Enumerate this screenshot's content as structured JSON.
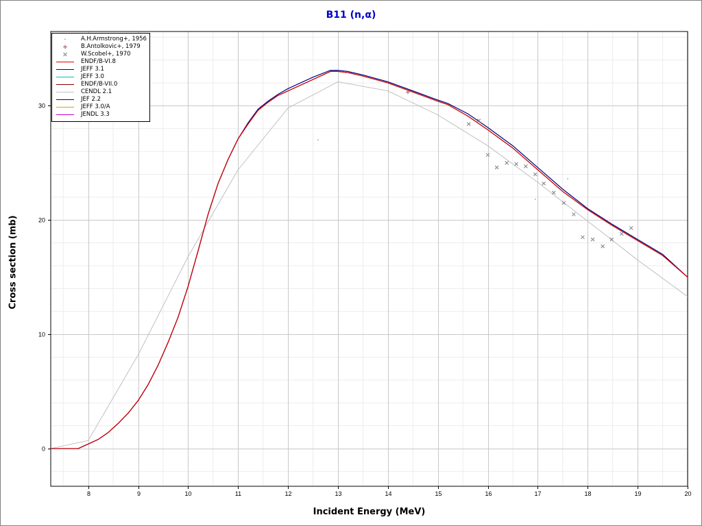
{
  "chart_data": {
    "type": "line",
    "title": "B11 (n,α)",
    "xlabel": "Incident Energy (MeV)",
    "ylabel": "Cross section (mb)",
    "xlim": [
      7.25,
      20
    ],
    "ylim": [
      -3.3,
      36.5
    ],
    "x_ticks": [
      8,
      9,
      10,
      11,
      12,
      13,
      14,
      15,
      16,
      17,
      18,
      19,
      20
    ],
    "y_ticks": [
      0,
      10,
      20,
      30
    ],
    "grid": true,
    "legend_position": "top-left",
    "series": [
      {
        "name": "A.H.Armstrong+, 1956",
        "kind": "points",
        "marker": "dot",
        "color": "#b0b0b0",
        "x": [
          12.6,
          16.95,
          17.6
        ],
        "y": [
          27.0,
          21.8,
          23.6
        ]
      },
      {
        "name": "B.Antolkovic+, 1979",
        "kind": "points",
        "marker": "plus",
        "color": "#a05050",
        "x": [
          14.4
        ],
        "y": [
          31.2
        ]
      },
      {
        "name": "W.Scobel+, 1970",
        "kind": "points",
        "marker": "x",
        "color": "#808080",
        "x": [
          15.62,
          15.82,
          16.0,
          16.18,
          16.38,
          16.57,
          16.76,
          16.95,
          17.12,
          17.32,
          17.52,
          17.72,
          17.9,
          18.1,
          18.3,
          18.48,
          18.68,
          18.87
        ],
        "y": [
          28.4,
          28.7,
          25.7,
          24.6,
          25.0,
          24.9,
          24.7,
          24.0,
          23.2,
          22.4,
          21.5,
          20.5,
          18.5,
          18.3,
          17.7,
          18.3,
          18.8,
          19.3
        ]
      },
      {
        "name": "ENDF/B-VI.8",
        "kind": "line",
        "color": "#dd0000",
        "x": [
          7.25,
          7.8,
          8.0,
          8.2,
          8.4,
          8.6,
          8.8,
          9.0,
          9.2,
          9.4,
          9.6,
          9.8,
          10.0,
          10.2,
          10.4,
          10.6,
          10.8,
          11.0,
          11.2,
          11.4,
          11.6,
          11.8,
          12.0,
          12.5,
          12.85,
          13.0,
          13.2,
          13.5,
          14.0,
          14.5,
          15.0,
          15.2,
          15.6,
          16.0,
          16.5,
          17.0,
          17.5,
          18.0,
          18.5,
          19.0,
          19.5,
          20.0
        ],
        "y": [
          0,
          0,
          0.4,
          0.8,
          1.4,
          2.2,
          3.1,
          4.2,
          5.6,
          7.3,
          9.3,
          11.5,
          14.2,
          17.3,
          20.5,
          23.2,
          25.3,
          27.1,
          28.4,
          29.6,
          30.3,
          30.9,
          31.3,
          32.3,
          33.0,
          33.0,
          32.9,
          32.6,
          32.0,
          31.2,
          30.4,
          30.1,
          29.1,
          27.9,
          26.3,
          24.4,
          22.5,
          20.9,
          19.5,
          18.2,
          16.9,
          15.0
        ]
      },
      {
        "name": "JEFF 3.1",
        "kind": "line",
        "color": "#000080",
        "x": [
          7.25,
          7.8,
          8.0,
          8.2,
          8.4,
          8.6,
          8.8,
          9.0,
          9.2,
          9.4,
          9.6,
          9.8,
          10.0,
          10.2,
          10.4,
          10.6,
          10.8,
          11.0,
          11.2,
          11.4,
          11.6,
          11.8,
          12.0,
          12.5,
          12.85,
          13.0,
          13.2,
          13.5,
          14.0,
          14.5,
          15.0,
          15.2,
          15.6,
          16.0,
          16.5,
          17.0,
          17.5,
          18.0,
          18.5,
          19.0,
          19.5,
          20.0
        ],
        "y": [
          0,
          0,
          0.4,
          0.8,
          1.4,
          2.2,
          3.1,
          4.2,
          5.6,
          7.3,
          9.3,
          11.5,
          14.2,
          17.3,
          20.5,
          23.2,
          25.3,
          27.1,
          28.5,
          29.7,
          30.4,
          31.0,
          31.5,
          32.5,
          33.1,
          33.1,
          33.0,
          32.7,
          32.1,
          31.3,
          30.5,
          30.2,
          29.3,
          28.1,
          26.5,
          24.6,
          22.7,
          21.0,
          19.6,
          18.3,
          17.0,
          15.0
        ]
      },
      {
        "name": "JEFF 3.0",
        "kind": "line",
        "color": "#00c0c0",
        "x": [
          7.25,
          7.8,
          8.0,
          8.2,
          8.4,
          8.6,
          8.8,
          9.0,
          9.2,
          9.4,
          9.6,
          9.8,
          10.0,
          10.2,
          10.4,
          10.6,
          10.8,
          11.0,
          11.2,
          11.4,
          11.6,
          11.8,
          12.0,
          12.5,
          12.85,
          13.0,
          13.2,
          13.5,
          14.0,
          14.5,
          15.0,
          15.2,
          15.6,
          16.0,
          16.5,
          17.0,
          17.5,
          18.0,
          18.5,
          19.0,
          19.5,
          20.0
        ],
        "y": [
          0,
          0,
          0.4,
          0.8,
          1.4,
          2.2,
          3.1,
          4.2,
          5.6,
          7.3,
          9.3,
          11.5,
          14.2,
          17.3,
          20.5,
          23.2,
          25.3,
          27.1,
          28.4,
          29.6,
          30.3,
          30.9,
          31.3,
          32.3,
          33.0,
          33.0,
          32.9,
          32.6,
          32.0,
          31.2,
          30.4,
          30.1,
          29.1,
          27.9,
          26.3,
          24.4,
          22.5,
          20.9,
          19.5,
          18.2,
          16.9,
          15.0
        ]
      },
      {
        "name": "ENDF/B-VII.0",
        "kind": "line",
        "color": "#800000",
        "x": [
          7.25,
          7.8,
          8.0,
          8.2,
          8.4,
          8.6,
          8.8,
          9.0,
          9.2,
          9.4,
          9.6,
          9.8,
          10.0,
          10.2,
          10.4,
          10.6,
          10.8,
          11.0,
          11.2,
          11.4,
          11.6,
          11.8,
          12.0,
          12.5,
          12.85,
          13.0,
          13.2,
          13.5,
          14.0,
          14.5,
          15.0,
          15.2,
          15.6,
          16.0,
          16.5,
          17.0,
          17.5,
          18.0,
          18.5,
          19.0,
          19.5,
          20.0
        ],
        "y": [
          0,
          0,
          0.4,
          0.8,
          1.4,
          2.2,
          3.1,
          4.2,
          5.6,
          7.3,
          9.3,
          11.5,
          14.2,
          17.3,
          20.5,
          23.2,
          25.3,
          27.1,
          28.4,
          29.6,
          30.3,
          30.9,
          31.3,
          32.3,
          33.0,
          33.0,
          32.9,
          32.6,
          32.0,
          31.2,
          30.4,
          30.1,
          29.1,
          27.9,
          26.3,
          24.4,
          22.5,
          20.9,
          19.5,
          18.2,
          16.9,
          15.0
        ]
      },
      {
        "name": "CENDL 2.1",
        "kind": "line",
        "color": "#c0c0c0",
        "x": [
          7.25,
          8.0,
          9.0,
          10.0,
          11.0,
          12.0,
          13.0,
          14.0,
          15.0,
          16.0,
          17.0,
          18.0,
          19.0,
          20.0
        ],
        "y": [
          0,
          0.7,
          8.2,
          16.8,
          24.4,
          29.8,
          32.1,
          31.3,
          29.2,
          26.5,
          23.3,
          19.9,
          16.5,
          13.3
        ]
      },
      {
        "name": "JEF 2.2",
        "kind": "line",
        "color": "#400000",
        "x": [
          7.25,
          7.8,
          8.0,
          8.2,
          8.4,
          8.6,
          8.8,
          9.0,
          9.2,
          9.4,
          9.6,
          9.8,
          10.0,
          10.2,
          10.4,
          10.6,
          10.8,
          11.0,
          11.2,
          11.4,
          11.6,
          11.8,
          12.0,
          12.5,
          12.85,
          13.0,
          13.2,
          13.5,
          14.0,
          14.5,
          15.0,
          15.2,
          15.6,
          16.0,
          16.5,
          17.0,
          17.5,
          18.0,
          18.5,
          19.0,
          19.5,
          20.0
        ],
        "y": [
          0,
          0,
          0.4,
          0.8,
          1.4,
          2.2,
          3.1,
          4.2,
          5.6,
          7.3,
          9.3,
          11.5,
          14.2,
          17.3,
          20.5,
          23.2,
          25.3,
          27.1,
          28.4,
          29.6,
          30.3,
          30.9,
          31.3,
          32.3,
          33.0,
          33.0,
          32.9,
          32.6,
          32.0,
          31.2,
          30.4,
          30.1,
          29.1,
          27.9,
          26.3,
          24.4,
          22.5,
          20.9,
          19.5,
          18.2,
          16.9,
          15.0
        ]
      },
      {
        "name": "JEFF 3.0/A",
        "kind": "line",
        "color": "#e0a000",
        "x": [
          7.25,
          7.8,
          8.0,
          8.2,
          8.4,
          8.6,
          8.8,
          9.0,
          9.2,
          9.4,
          9.6,
          9.8,
          10.0,
          10.2,
          10.4,
          10.6,
          10.8,
          11.0,
          11.2,
          11.4,
          11.6,
          11.8,
          12.0,
          12.5,
          12.85,
          13.0,
          13.2,
          13.5,
          14.0,
          14.5,
          15.0,
          15.2,
          15.6,
          16.0,
          16.5,
          17.0,
          17.5,
          18.0,
          18.5,
          19.0,
          19.5,
          20.0
        ],
        "y": [
          0,
          0,
          0.4,
          0.8,
          1.4,
          2.2,
          3.1,
          4.2,
          5.6,
          7.3,
          9.3,
          11.5,
          14.2,
          17.3,
          20.5,
          23.2,
          25.3,
          27.1,
          28.4,
          29.6,
          30.3,
          30.9,
          31.3,
          32.3,
          33.0,
          33.0,
          32.9,
          32.6,
          32.0,
          31.2,
          30.4,
          30.1,
          29.1,
          27.9,
          26.3,
          24.4,
          22.5,
          20.9,
          19.5,
          18.2,
          16.9,
          15.0
        ]
      },
      {
        "name": "JENDL 3.3",
        "kind": "line",
        "color": "#c000c0",
        "x": [
          7.25,
          7.8,
          8.0,
          8.2,
          8.4,
          8.6,
          8.8,
          9.0,
          9.2,
          9.4,
          9.6,
          9.8,
          10.0,
          10.2,
          10.4,
          10.6,
          10.8,
          11.0,
          11.2,
          11.4,
          11.6,
          11.8,
          12.0,
          12.5,
          12.85,
          13.0,
          13.2,
          13.5,
          14.0,
          14.5,
          15.0,
          15.2,
          15.6,
          16.0,
          16.5,
          17.0,
          17.5,
          18.0,
          18.5,
          19.0,
          19.5,
          20.0
        ],
        "y": [
          0,
          0,
          0.4,
          0.8,
          1.4,
          2.2,
          3.1,
          4.2,
          5.6,
          7.3,
          9.3,
          11.5,
          14.2,
          17.3,
          20.5,
          23.2,
          25.3,
          27.1,
          28.4,
          29.6,
          30.3,
          30.9,
          31.3,
          32.3,
          33.0,
          33.0,
          32.9,
          32.6,
          32.0,
          31.2,
          30.4,
          30.1,
          29.1,
          27.9,
          26.3,
          24.4,
          22.5,
          20.9,
          19.5,
          18.2,
          16.9,
          15.0
        ]
      }
    ]
  }
}
